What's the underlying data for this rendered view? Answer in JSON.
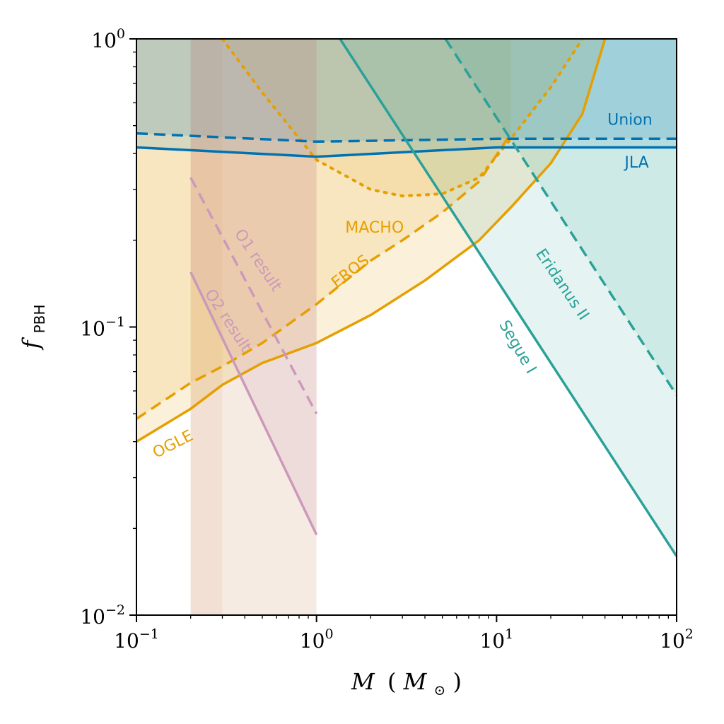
{
  "chart_data": {
    "type": "line",
    "xlabel": {
      "main": "M",
      "paren_open": "(",
      "symbol": "M",
      "subscript": "⊙",
      "paren_close": ")"
    },
    "ylabel": {
      "main": "f",
      "subscript": "PBH"
    },
    "xscale": "log",
    "yscale": "log",
    "xlim": [
      0.1,
      100
    ],
    "ylim": [
      0.01,
      1
    ],
    "grid": false,
    "x_ticks": [
      {
        "base": "10",
        "exp": "−1",
        "value": 0.1
      },
      {
        "base": "10",
        "exp": "0",
        "value": 1
      },
      {
        "base": "10",
        "exp": "1",
        "value": 10
      },
      {
        "base": "10",
        "exp": "2",
        "value": 100
      }
    ],
    "y_ticks": [
      {
        "base": "10",
        "exp": "−2",
        "value": 0.01
      },
      {
        "base": "10",
        "exp": "−1",
        "value": 0.1
      },
      {
        "base": "10",
        "exp": "0",
        "value": 1
      }
    ],
    "colors": {
      "orange": "#e69f00",
      "blue": "#0072b2",
      "teal": "#2aa198",
      "pink": "#cc99bb",
      "brown": "#d4a37a"
    },
    "shaded_regions": [
      {
        "name": "pbh-band",
        "color": "#d4a37a",
        "opacity": 0.22,
        "x": [
          0.2,
          1.0
        ]
      },
      {
        "name": "low-mass-band",
        "color": "#d4a37a",
        "opacity": 0.14,
        "x": [
          0.2,
          0.3
        ]
      }
    ],
    "series": [
      {
        "key": "ogle",
        "label": "OGLE",
        "color": "#e69f00",
        "style": "solid",
        "width": 3.5,
        "fill_opacity": 0.14,
        "x": [
          0.1,
          0.2,
          0.3,
          0.5,
          1.0,
          2.0,
          4.0,
          8.0,
          12.0,
          20.0,
          30.0,
          40.0
        ],
        "y": [
          0.04,
          0.052,
          0.063,
          0.075,
          0.088,
          0.11,
          0.145,
          0.2,
          0.26,
          0.37,
          0.55,
          1.0
        ]
      },
      {
        "key": "eros",
        "label": "EROS",
        "color": "#e69f00",
        "style": "dashed",
        "width": 3.5,
        "fill_opacity": 0.12,
        "x": [
          0.1,
          0.2,
          0.3,
          0.5,
          1.0,
          2.0,
          3.0,
          5.0,
          8.0,
          12.0
        ],
        "y": [
          0.048,
          0.064,
          0.073,
          0.088,
          0.12,
          0.17,
          0.2,
          0.25,
          0.32,
          0.47
        ]
      },
      {
        "key": "macho",
        "label": "MACHO",
        "color": "#e69f00",
        "style": "dotted",
        "width": 4,
        "fill_opacity": 0.1,
        "x": [
          0.3,
          0.5,
          1.0,
          2.0,
          3.0,
          5.0,
          8.0,
          12.0,
          20.0,
          30.0
        ],
        "y": [
          1.0,
          0.65,
          0.38,
          0.3,
          0.285,
          0.29,
          0.33,
          0.45,
          0.68,
          1.0
        ]
      },
      {
        "key": "union",
        "label": "Union",
        "color": "#0072b2",
        "style": "dashed",
        "width": 3.5,
        "fill_opacity": 0.12,
        "x": [
          0.1,
          1.0,
          10.0,
          100.0
        ],
        "y": [
          0.47,
          0.44,
          0.45,
          0.45
        ]
      },
      {
        "key": "jla",
        "label": "JLA",
        "color": "#0072b2",
        "style": "solid",
        "width": 3.5,
        "fill_opacity": 0.12,
        "x": [
          0.1,
          1.0,
          10.0,
          100.0
        ],
        "y": [
          0.42,
          0.39,
          0.42,
          0.42
        ]
      },
      {
        "key": "segue",
        "label": "Segue I",
        "color": "#2aa198",
        "style": "solid",
        "width": 3.5,
        "fill_opacity": 0.12,
        "x": [
          1.35,
          100.0
        ],
        "y": [
          1.0,
          0.016
        ]
      },
      {
        "key": "eridanus",
        "label": "Eridanus II",
        "color": "#2aa198",
        "style": "dashed",
        "width": 3.5,
        "fill_opacity": 0.12,
        "x": [
          5.2,
          100.0
        ],
        "y": [
          1.0,
          0.058
        ]
      },
      {
        "key": "o1",
        "label": "O1 result",
        "color": "#cc99bb",
        "style": "dashed",
        "width": 3.5,
        "fill_opacity": 0,
        "x": [
          0.2,
          1.0
        ],
        "y": [
          0.33,
          0.05
        ]
      },
      {
        "key": "o2",
        "label": "O2 result",
        "color": "#cc99bb",
        "style": "solid",
        "width": 3.5,
        "fill_opacity": 0.18,
        "x": [
          0.2,
          1.0
        ],
        "y": [
          0.155,
          0.019
        ]
      }
    ],
    "annotations": [
      {
        "key": "union",
        "text": "Union",
        "x": 55,
        "y": 0.52,
        "rotation": 0,
        "color": "#0072b2",
        "anchor": "middle"
      },
      {
        "key": "jla",
        "text": "JLA",
        "x": 60,
        "y": 0.37,
        "rotation": 0,
        "color": "#0072b2",
        "anchor": "middle"
      },
      {
        "key": "macho",
        "text": "MACHO",
        "x": 2.1,
        "y": 0.22,
        "rotation": 0,
        "color": "#e69f00",
        "anchor": "middle"
      },
      {
        "key": "eros",
        "text": "EROS",
        "x": 1.55,
        "y": 0.155,
        "rotation": -38,
        "color": "#e69f00",
        "anchor": "middle"
      },
      {
        "key": "ogle",
        "text": "OGLE",
        "x": 0.16,
        "y": 0.039,
        "rotation": -27,
        "color": "#e69f00",
        "anchor": "middle"
      },
      {
        "key": "o1",
        "text": "O1 result",
        "x": 0.47,
        "y": 0.17,
        "rotation": 56,
        "color": "#cc99bb",
        "anchor": "middle"
      },
      {
        "key": "o2",
        "text": "O2 result",
        "x": 0.32,
        "y": 0.105,
        "rotation": 57,
        "color": "#cc99bb",
        "anchor": "middle"
      },
      {
        "key": "eridanus",
        "text": "Eridanus II",
        "x": 23,
        "y": 0.14,
        "rotation": 56,
        "color": "#2aa198",
        "anchor": "middle"
      },
      {
        "key": "segue",
        "text": "Segue I",
        "x": 13,
        "y": 0.085,
        "rotation": 60,
        "color": "#2aa198",
        "anchor": "middle"
      }
    ]
  }
}
